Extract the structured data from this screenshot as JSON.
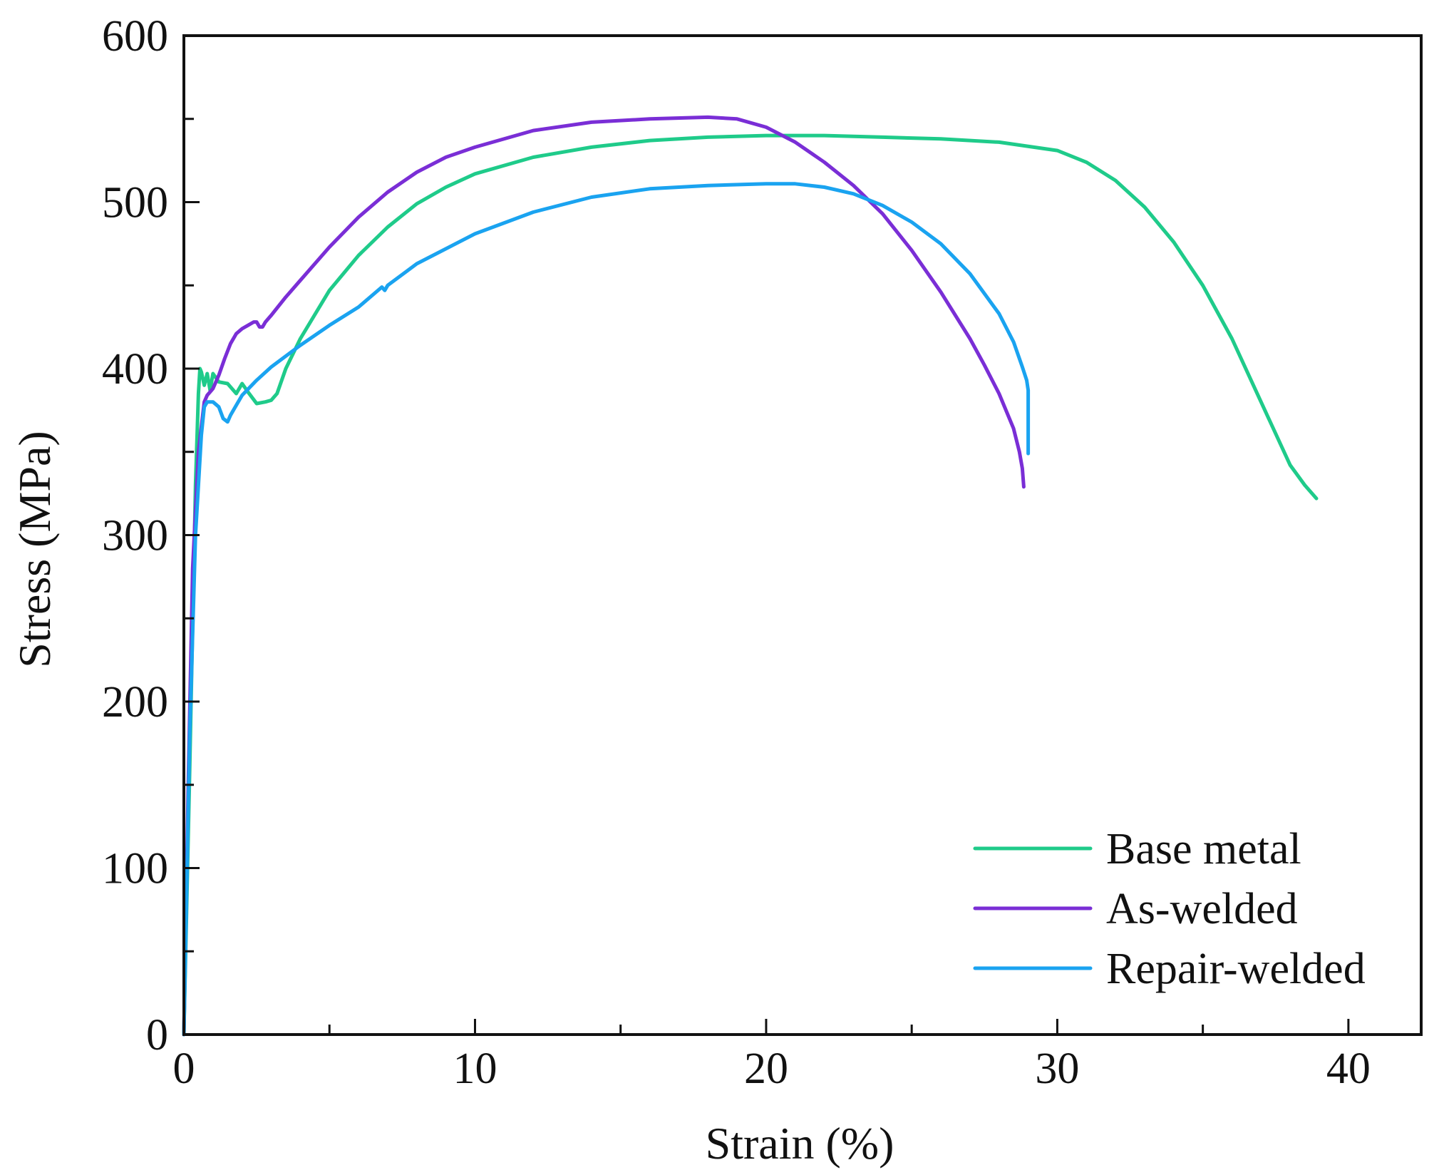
{
  "chart_data": {
    "type": "line",
    "title": "",
    "xlabel": "Strain (%)",
    "ylabel": "Stress (MPa)",
    "xlim": [
      0,
      42.5
    ],
    "ylim": [
      0,
      600
    ],
    "xticks": [
      0,
      10,
      20,
      30,
      40
    ],
    "yticks": [
      0,
      100,
      200,
      300,
      400,
      500,
      600
    ],
    "xtick_labels": [
      "0",
      "10",
      "20",
      "30",
      "40"
    ],
    "ytick_labels": [
      "0",
      "100",
      "200",
      "300",
      "400",
      "500",
      "600"
    ],
    "grid": false,
    "legend_position": "bottom-right",
    "series": [
      {
        "name": "Base metal",
        "color": "#1fcb8a",
        "x": [
          0,
          0.2,
          0.4,
          0.5,
          0.55,
          0.6,
          0.7,
          0.8,
          0.9,
          1.0,
          1.2,
          1.5,
          1.8,
          2.0,
          2.2,
          2.5,
          2.8,
          3.0,
          3.2,
          3.5,
          4.0,
          5.0,
          6.0,
          7.0,
          8.0,
          9.0,
          10.0,
          12.0,
          14.0,
          16.0,
          18.0,
          20.0,
          22.0,
          24.0,
          26.0,
          28.0,
          30.0,
          31.0,
          32.0,
          33.0,
          34.0,
          35.0,
          36.0,
          37.0,
          38.0,
          38.5,
          38.9
        ],
        "y": [
          0,
          160,
          330,
          385,
          400,
          398,
          390,
          397,
          387,
          397,
          392,
          391,
          385,
          391,
          386,
          379,
          380,
          381,
          385,
          400,
          418,
          447,
          468,
          485,
          499,
          509,
          517,
          527,
          533,
          537,
          539,
          540,
          540,
          539,
          538,
          536,
          531,
          524,
          513,
          497,
          476,
          450,
          418,
          380,
          342,
          330,
          322
        ]
      },
      {
        "name": "As-welded",
        "color": "#7a2ed6",
        "x": [
          0,
          0.15,
          0.3,
          0.5,
          0.7,
          0.8,
          0.9,
          1.0,
          1.2,
          1.4,
          1.6,
          1.8,
          2.0,
          2.2,
          2.4,
          2.5,
          2.6,
          2.7,
          2.8,
          3.0,
          3.5,
          4.0,
          5.0,
          6.0,
          7.0,
          8.0,
          9.0,
          10.0,
          12.0,
          14.0,
          16.0,
          18.0,
          19.0,
          20.0,
          21.0,
          22.0,
          23.0,
          24.0,
          25.0,
          26.0,
          27.0,
          27.5,
          28.0,
          28.5,
          28.7,
          28.8,
          28.85
        ],
        "y": [
          0,
          150,
          280,
          350,
          380,
          384,
          386,
          388,
          396,
          406,
          415,
          421,
          424,
          426,
          428,
          428,
          425,
          425,
          428,
          432,
          443,
          453,
          473,
          491,
          506,
          518,
          527,
          533,
          543,
          548,
          550,
          551,
          550,
          545,
          536,
          524,
          510,
          493,
          471,
          446,
          418,
          402,
          385,
          364,
          350,
          340,
          329
        ]
      },
      {
        "name": "Repair-welded",
        "color": "#1aa3f0",
        "x": [
          0,
          0.2,
          0.4,
          0.6,
          0.7,
          0.8,
          1.0,
          1.2,
          1.35,
          1.5,
          1.6,
          1.8,
          2.0,
          2.5,
          3.0,
          4.0,
          5.0,
          6.0,
          6.8,
          6.9,
          7.0,
          8.0,
          10.0,
          12.0,
          14.0,
          16.0,
          18.0,
          20.0,
          21.0,
          22.0,
          23.0,
          24.0,
          25.0,
          26.0,
          27.0,
          28.0,
          28.5,
          28.8,
          28.95,
          29.0,
          29.0
        ],
        "y": [
          0,
          180,
          300,
          360,
          377,
          380,
          380,
          377,
          370,
          368,
          372,
          378,
          384,
          393,
          401,
          414,
          426,
          437,
          449,
          447,
          450,
          463,
          481,
          494,
          503,
          508,
          510,
          511,
          511,
          509,
          505,
          498,
          488,
          475,
          457,
          433,
          416,
          401,
          393,
          387,
          349
        ]
      }
    ]
  }
}
